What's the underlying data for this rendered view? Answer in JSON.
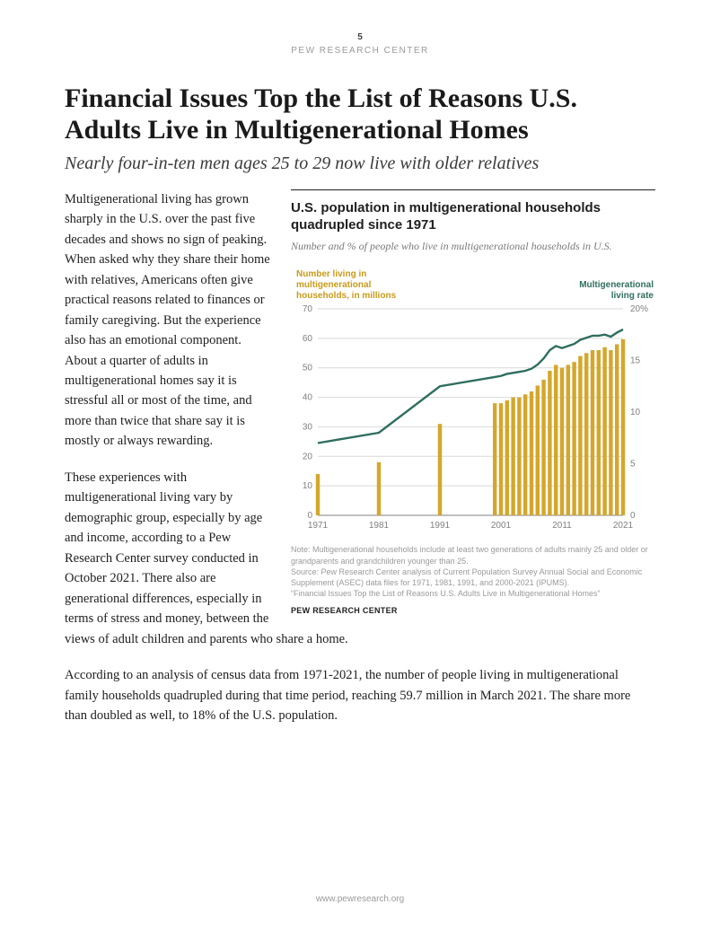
{
  "header": {
    "page_number": "5",
    "org": "PEW RESEARCH CENTER"
  },
  "headline": "Financial Issues Top the List of Reasons U.S. Adults Live in Multigenerational Homes",
  "subhead": "Nearly four-in-ten men ages 25 to 29 now live with older relatives",
  "chart": {
    "title": "U.S. population in multigenerational households quadrupled since 1971",
    "subtitle": "Number and % of people who live in multigenerational households in U.S.",
    "left_axis_label": "Number living in multigenerational households, in millions",
    "right_axis_label": "Multigenerational living rate",
    "type": "bar+line",
    "bar_color": "#d4a72c",
    "line_color": "#2e6e5e",
    "grid_color": "#d9d9d9",
    "axis_label_color": "#808080",
    "left_label_color": "#c99a1a",
    "right_label_color": "#2e6e5e",
    "tick_fontsize": 10,
    "axis_label_fontsize": 10,
    "background_color": "#ffffff",
    "x_ticks": [
      "1971",
      "1981",
      "1991",
      "2001",
      "2011",
      "2021"
    ],
    "left_ylim": [
      0,
      70
    ],
    "left_ytick_step": 10,
    "right_ylim": [
      0,
      20
    ],
    "right_yticks": [
      0,
      5,
      10,
      15,
      20
    ],
    "right_ytick_labels": [
      "0",
      "5",
      "10",
      "15",
      "20%"
    ],
    "bars": [
      {
        "year": 1971,
        "value": 14
      },
      {
        "year": 1981,
        "value": 18
      },
      {
        "year": 1991,
        "value": 31
      },
      {
        "year": 2000,
        "value": 38
      },
      {
        "year": 2001,
        "value": 38
      },
      {
        "year": 2002,
        "value": 39
      },
      {
        "year": 2003,
        "value": 40
      },
      {
        "year": 2004,
        "value": 40
      },
      {
        "year": 2005,
        "value": 41
      },
      {
        "year": 2006,
        "value": 42
      },
      {
        "year": 2007,
        "value": 44
      },
      {
        "year": 2008,
        "value": 46
      },
      {
        "year": 2009,
        "value": 49
      },
      {
        "year": 2010,
        "value": 51
      },
      {
        "year": 2011,
        "value": 50
      },
      {
        "year": 2012,
        "value": 51
      },
      {
        "year": 2013,
        "value": 52
      },
      {
        "year": 2014,
        "value": 54
      },
      {
        "year": 2015,
        "value": 55
      },
      {
        "year": 2016,
        "value": 56
      },
      {
        "year": 2017,
        "value": 56
      },
      {
        "year": 2018,
        "value": 57
      },
      {
        "year": 2019,
        "value": 56
      },
      {
        "year": 2020,
        "value": 58
      },
      {
        "year": 2021,
        "value": 59.7
      }
    ],
    "line": [
      {
        "year": 1971,
        "pct": 7.0
      },
      {
        "year": 1981,
        "pct": 8.0
      },
      {
        "year": 1991,
        "pct": 12.5
      },
      {
        "year": 2000,
        "pct": 13.4
      },
      {
        "year": 2001,
        "pct": 13.5
      },
      {
        "year": 2002,
        "pct": 13.7
      },
      {
        "year": 2003,
        "pct": 13.8
      },
      {
        "year": 2004,
        "pct": 13.9
      },
      {
        "year": 2005,
        "pct": 14.0
      },
      {
        "year": 2006,
        "pct": 14.2
      },
      {
        "year": 2007,
        "pct": 14.6
      },
      {
        "year": 2008,
        "pct": 15.2
      },
      {
        "year": 2009,
        "pct": 16.0
      },
      {
        "year": 2010,
        "pct": 16.4
      },
      {
        "year": 2011,
        "pct": 16.2
      },
      {
        "year": 2012,
        "pct": 16.4
      },
      {
        "year": 2013,
        "pct": 16.6
      },
      {
        "year": 2014,
        "pct": 17.0
      },
      {
        "year": 2015,
        "pct": 17.2
      },
      {
        "year": 2016,
        "pct": 17.4
      },
      {
        "year": 2017,
        "pct": 17.4
      },
      {
        "year": 2018,
        "pct": 17.5
      },
      {
        "year": 2019,
        "pct": 17.3
      },
      {
        "year": 2020,
        "pct": 17.7
      },
      {
        "year": 2021,
        "pct": 18.0
      }
    ],
    "note": "Note: Multigenerational households include at least two generations of adults mainly 25 and older or grandparents and grandchildren younger than 25.\nSource: Pew Research Center analysis of Current Population Survey Annual Social and Economic Supplement (ASEC) data files for 1971, 1981, 1991, and 2000-2021 (IPUMS).\n“Financial Issues Top the List of Reasons U.S. Adults Live in Multigenerational Homes”",
    "attribution": "PEW RESEARCH CENTER"
  },
  "body": {
    "p1": "Multigenerational living has grown sharply in the U.S. over the past five decades and shows no sign of peaking. When asked why they share their home with relatives, Americans often give practical reasons related to finances or family caregiving. But the experience also has an emotional component. About a quarter of adults in multigenerational homes say it is stressful all or most of the time, and more than twice that share say it is mostly or always rewarding.",
    "p2": "These experiences with multigenerational living vary by demographic group, especially by age and income, according to a Pew Research Center survey conducted in October 2021. There also are generational differences, especially in terms of stress and money, between the views of adult children and parents who share a home.",
    "p3": "According to an analysis of census data from 1971-2021, the number of people living in multigenerational family households quadrupled during that time period, reaching 59.7 million in March 2021. The share more than doubled as well, to 18% of the U.S. population."
  },
  "footer": "www.pewresearch.org"
}
